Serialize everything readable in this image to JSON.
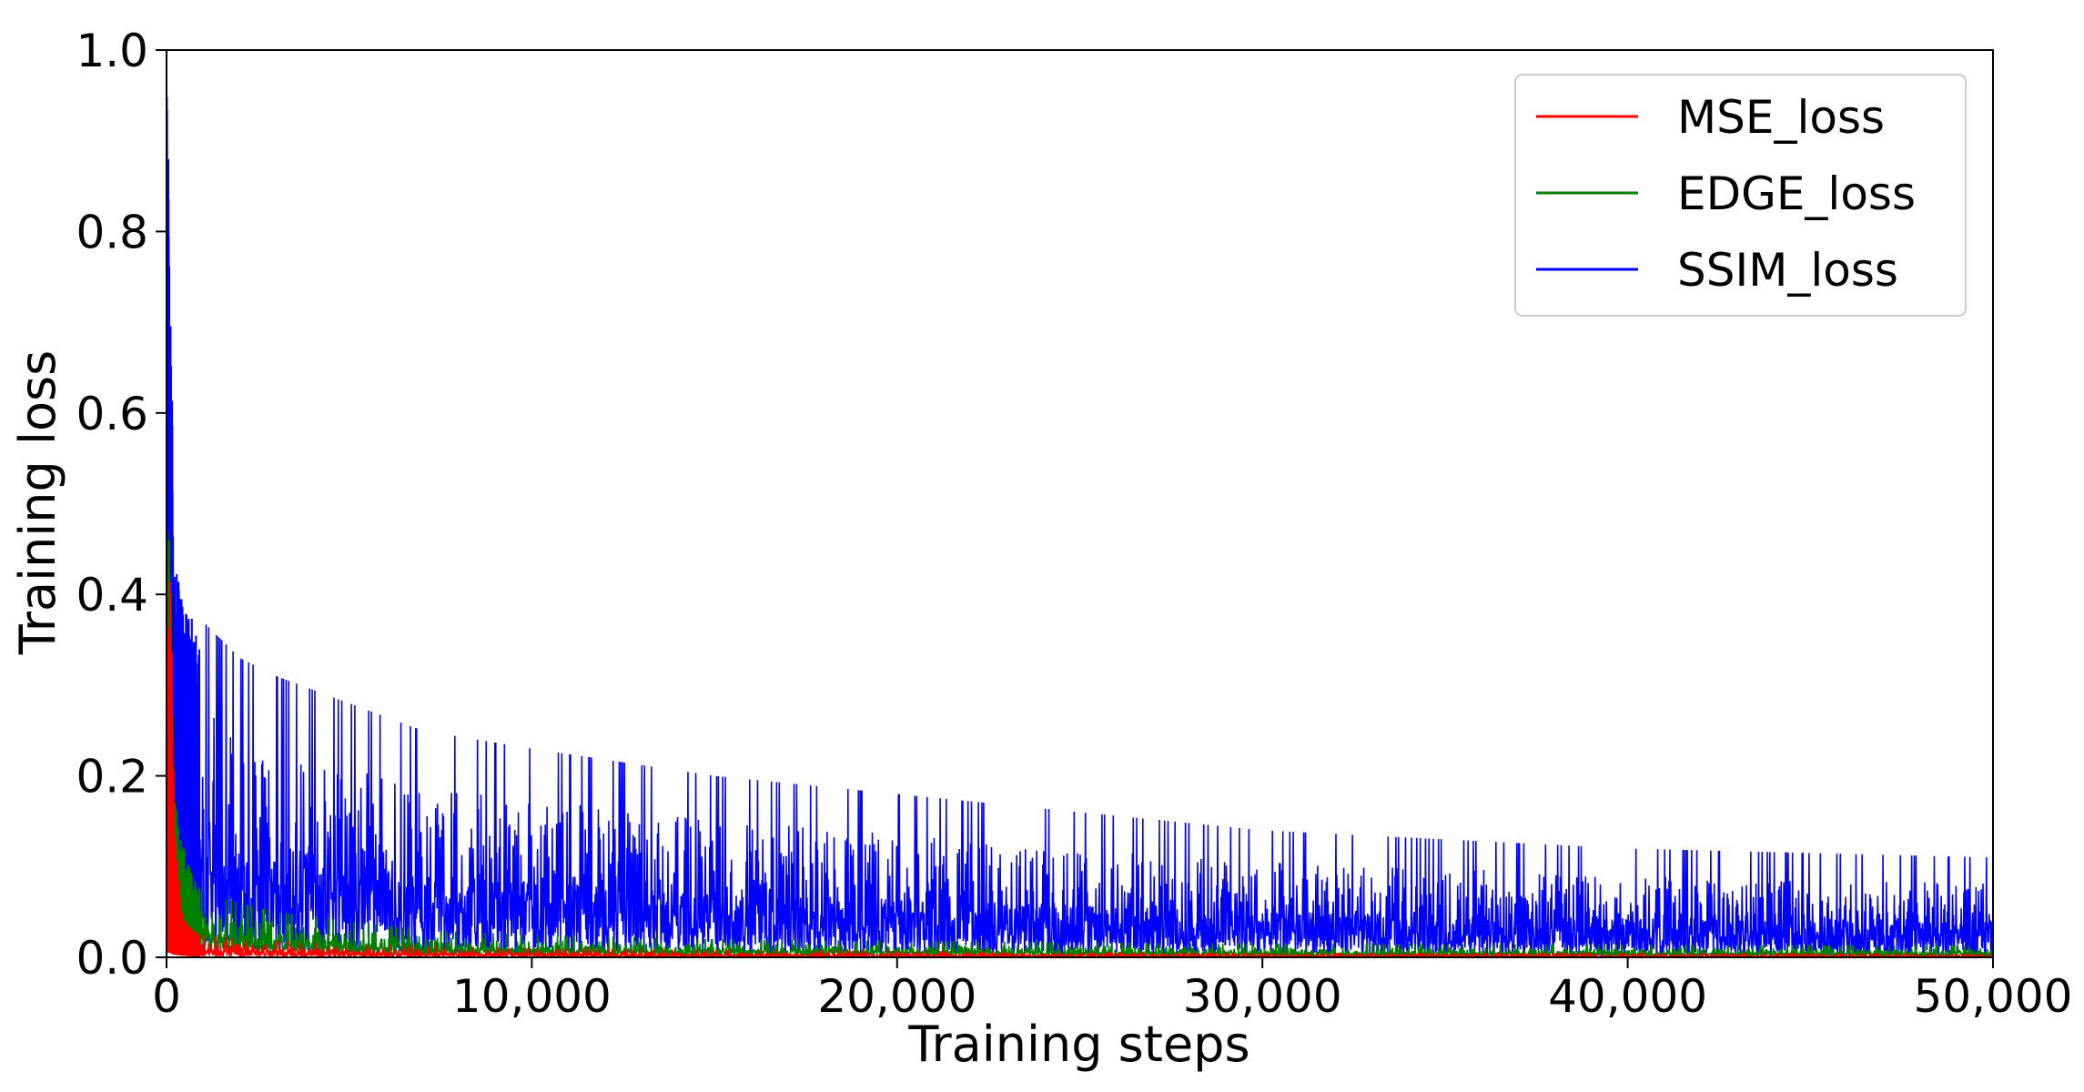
{
  "chart_data": {
    "type": "line",
    "title": "",
    "xlabel": "Training steps",
    "ylabel": "Training loss",
    "xlim": [
      0,
      50000
    ],
    "ylim": [
      0.0,
      1.0
    ],
    "xticks": [
      0,
      10000,
      20000,
      30000,
      40000,
      50000
    ],
    "xtick_labels": [
      "0",
      "10,000",
      "20,000",
      "30,000",
      "40,000",
      "50,000"
    ],
    "yticks": [
      0.0,
      0.2,
      0.4,
      0.6,
      0.8,
      1.0
    ],
    "ytick_labels": [
      "0.0",
      "0.2",
      "0.4",
      "0.6",
      "0.8",
      "1.0"
    ],
    "grid": false,
    "legend_position": "top-right",
    "series": [
      {
        "name": "MSE_loss",
        "color": "#ff0000",
        "x": [
          0,
          100,
          200,
          400,
          700,
          1000,
          2000,
          3000,
          5000,
          7000,
          10000,
          15000,
          20000,
          30000,
          40000,
          50000
        ],
        "low": [
          0.005,
          0.005,
          0.003,
          0.002,
          0.001,
          0.001,
          0.001,
          0.001,
          0.001,
          0.001,
          0.001,
          0.0,
          0.0,
          0.0,
          0.0,
          0.0
        ],
        "high": [
          0.44,
          0.42,
          0.15,
          0.05,
          0.03,
          0.025,
          0.02,
          0.018,
          0.015,
          0.012,
          0.01,
          0.008,
          0.007,
          0.005,
          0.005,
          0.004
        ]
      },
      {
        "name": "EDGE_loss",
        "color": "#008000",
        "x": [
          0,
          100,
          200,
          400,
          700,
          1000,
          2000,
          3000,
          5000,
          7000,
          10000,
          15000,
          20000,
          30000,
          40000,
          50000
        ],
        "low": [
          0.02,
          0.015,
          0.012,
          0.01,
          0.008,
          0.006,
          0.005,
          0.004,
          0.003,
          0.003,
          0.002,
          0.002,
          0.002,
          0.001,
          0.001,
          0.001
        ],
        "high": [
          0.5,
          0.45,
          0.18,
          0.13,
          0.09,
          0.07,
          0.06,
          0.05,
          0.04,
          0.03,
          0.025,
          0.02,
          0.018,
          0.015,
          0.014,
          0.013
        ]
      },
      {
        "name": "SSIM_loss",
        "color": "#0000ff",
        "x": [
          0,
          50,
          100,
          200,
          300,
          500,
          1000,
          2000,
          3000,
          5000,
          7000,
          10000,
          15000,
          20000,
          25000,
          30000,
          35000,
          40000,
          45000,
          50000
        ],
        "low": [
          0.4,
          0.3,
          0.15,
          0.05,
          0.03,
          0.02,
          0.01,
          0.008,
          0.007,
          0.006,
          0.005,
          0.005,
          0.004,
          0.004,
          0.003,
          0.003,
          0.003,
          0.002,
          0.002,
          0.002
        ],
        "high": [
          0.97,
          0.9,
          0.8,
          0.45,
          0.42,
          0.38,
          0.37,
          0.33,
          0.31,
          0.28,
          0.25,
          0.23,
          0.2,
          0.18,
          0.16,
          0.14,
          0.13,
          0.12,
          0.115,
          0.11
        ]
      }
    ]
  }
}
